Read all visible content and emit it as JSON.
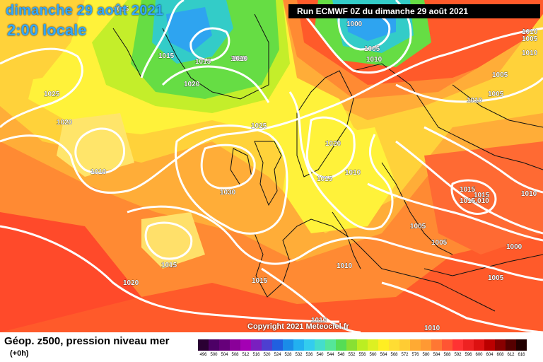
{
  "header": {
    "date": "dimanche 29 août 2021",
    "time": "2:00 locale"
  },
  "run_banner": "Run ECMWF 0Z du dimanche 29 août 2021",
  "copyright": "Copyright 2021 Meteociel.fr",
  "footer": {
    "title": "Géop. z500, pression niveau mer",
    "subtitle": "(+0h)"
  },
  "isobar_labels": [
    "1015",
    "1000",
    "1005",
    "1010",
    "1010",
    "1015",
    "1015",
    "1010",
    "1020",
    "1025",
    "1020",
    "1010",
    "1025",
    "1030",
    "1020",
    "1015",
    "1010",
    "1015",
    "1020",
    "1015",
    "1010",
    "1010",
    "1005",
    "1005",
    "1010",
    "1005",
    "1005",
    "1010",
    "1015",
    "1015",
    "1015.010",
    "1010",
    "1005",
    "1000",
    "1005",
    "1010",
    "1010"
  ],
  "scale": {
    "labels": [
      "496",
      "500",
      "504",
      "508",
      "512",
      "516",
      "520",
      "524",
      "528",
      "532",
      "536",
      "540",
      "544",
      "548",
      "552",
      "556",
      "560",
      "564",
      "568",
      "572",
      "576",
      "580",
      "584",
      "588",
      "592",
      "596",
      "600",
      "604",
      "608",
      "612",
      "616"
    ],
    "colors": [
      "#2a0033",
      "#4d0066",
      "#66007a",
      "#8a0099",
      "#a400b4",
      "#7a1fbf",
      "#4d3fd0",
      "#2060e0",
      "#1a8ce8",
      "#22b0f0",
      "#33ccee",
      "#44ddcc",
      "#55e699",
      "#55dd55",
      "#88e033",
      "#bbee22",
      "#ddf022",
      "#ffee22",
      "#ffdd33",
      "#ffcc33",
      "#ffaa33",
      "#ff9933",
      "#ff7733",
      "#ff5533",
      "#ff3333",
      "#ee2222",
      "#dd1111",
      "#bb0000",
      "#880000",
      "#550000",
      "#220000"
    ]
  }
}
